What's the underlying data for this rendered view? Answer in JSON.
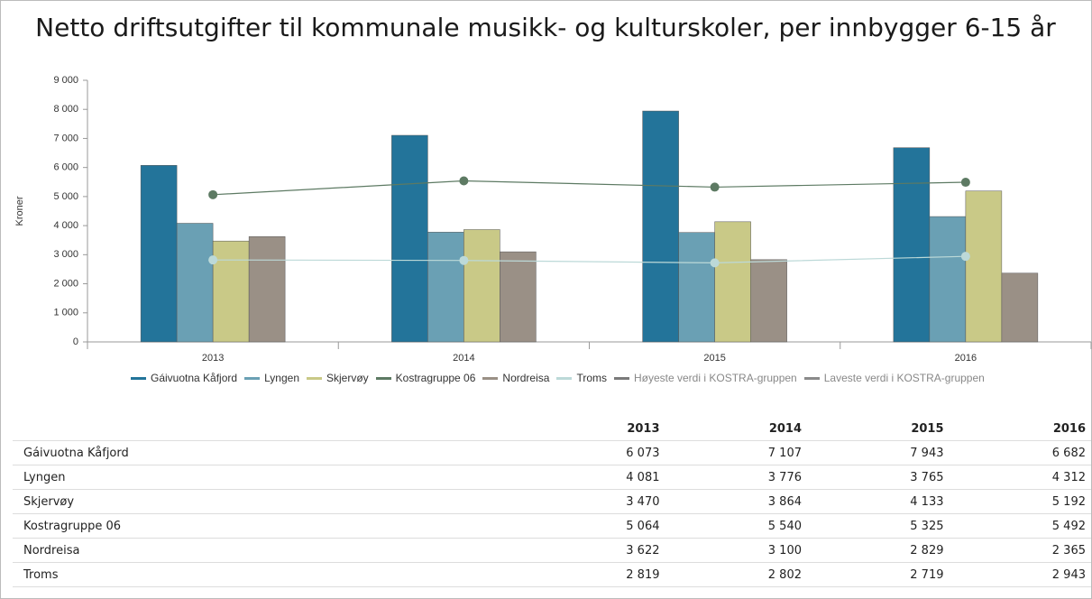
{
  "chart_data": {
    "type": "bar",
    "title": "Netto driftsutgifter til kommunale musikk- og kulturskoler, per innbygger 6-15 år",
    "y_label": "Kroner",
    "categories": [
      "2013",
      "2014",
      "2015",
      "2016"
    ],
    "series": [
      {
        "name": "Gáivuotna Kåfjord",
        "color": "#23749a",
        "type": "bar",
        "values": [
          6073,
          7107,
          7943,
          6682
        ]
      },
      {
        "name": "Lyngen",
        "color": "#6aa0b4",
        "type": "bar",
        "values": [
          4081,
          3776,
          3765,
          4312
        ]
      },
      {
        "name": "Skjervøy",
        "color": "#c9c987",
        "type": "bar",
        "values": [
          3470,
          3864,
          4133,
          5192
        ]
      },
      {
        "name": "Kostragruppe 06",
        "color": "#5d7a63",
        "type": "line",
        "values": [
          5064,
          5540,
          5325,
          5492
        ]
      },
      {
        "name": "Nordreisa",
        "color": "#9a9086",
        "type": "bar",
        "values": [
          3622,
          3100,
          2829,
          2365
        ]
      },
      {
        "name": "Troms",
        "color": "#bcd9d8",
        "type": "line",
        "values": [
          2819,
          2802,
          2719,
          2943
        ]
      },
      {
        "name": "Høyeste verdi i KOSTRA-gruppen",
        "color": "#7a7a7a",
        "type": "line",
        "values": [
          null,
          null,
          null,
          null
        ]
      },
      {
        "name": "Laveste verdi i KOSTRA-gruppen",
        "color": "#8a8a8a",
        "type": "line",
        "values": [
          null,
          null,
          null,
          null
        ]
      }
    ],
    "ylim": [
      0,
      9000
    ],
    "yticks": [
      0,
      {
        "value": 1000,
        "label": "1 000"
      },
      {
        "value": 2000,
        "label": "2 000"
      },
      {
        "value": 3000,
        "label": "3 000"
      },
      {
        "value": 4000,
        "label": "4 000"
      },
      {
        "value": 5000,
        "label": "5 000"
      },
      {
        "value": 6000,
        "label": "6 000"
      },
      {
        "value": 7000,
        "label": "7 000"
      },
      {
        "value": 8000,
        "label": "8 000"
      },
      {
        "value": 9000,
        "label": "9 000"
      }
    ],
    "grid": false
  },
  "table": {
    "columns": [
      "2013",
      "2014",
      "2015",
      "2016"
    ],
    "rows": [
      [
        "Gáivuotna Kåfjord",
        "6 073",
        "7 107",
        "7 943",
        "6 682"
      ],
      [
        "Lyngen",
        "4 081",
        "3 776",
        "3 765",
        "4 312"
      ],
      [
        "Skjervøy",
        "3 470",
        "3 864",
        "4 133",
        "5 192"
      ],
      [
        "Kostragruppe 06",
        "5 064",
        "5 540",
        "5 325",
        "5 492"
      ],
      [
        "Nordreisa",
        "3 622",
        "3 100",
        "2 829",
        "2 365"
      ],
      [
        "Troms",
        "2 819",
        "2 802",
        "2 719",
        "2 943"
      ]
    ]
  }
}
